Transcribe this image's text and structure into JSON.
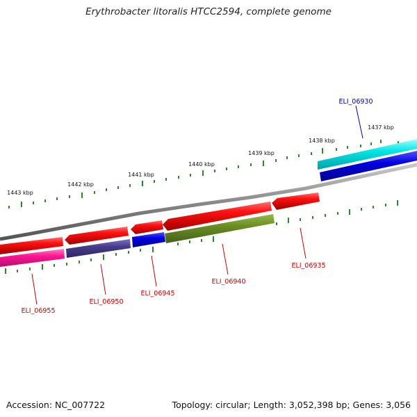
{
  "title": "Erythrobacter litoralis HTCC2594, complete genome",
  "footer": {
    "accession": "Accession: NC_007722",
    "topology": "Topology: circular; Length: 3,052,398 bp; Genes: 3,056"
  },
  "colors": {
    "backbone": "#808080",
    "tick": "#2a8a2a",
    "label_red": "#cc0000",
    "label_blue": "#0000aa"
  },
  "ticks": [
    "1437 kbp",
    "1438 kbp",
    "1439 kbp",
    "1440 kbp",
    "1441 kbp",
    "1442 kbp",
    "1443 kbp"
  ],
  "genes": [
    {
      "name": "ELI_06930",
      "strand": "+",
      "feature_color": "#00e0e0",
      "cds_color": "#0000e0",
      "label_color": "#0000aa"
    },
    {
      "name": "ELI_06935",
      "strand": "-",
      "feature_color": "#ff2020",
      "cds_color": "#6b8e23",
      "label_color": "#cc0000"
    },
    {
      "name": "ELI_06940",
      "strand": "-",
      "feature_color": "#ff1010",
      "cds_color": "#6b8e23",
      "label_color": "#cc0000"
    },
    {
      "name": "ELI_06945",
      "strand": "-",
      "feature_color": "#ff1010",
      "cds_color": "#0000e0",
      "label_color": "#cc0000"
    },
    {
      "name": "ELI_06950",
      "strand": "-",
      "feature_color": "#ff1010",
      "cds_color": "#483d8b",
      "label_color": "#cc0000"
    },
    {
      "name": "ELI_06955",
      "strand": "-",
      "feature_color": "#ff1010",
      "cds_color": "#ff1493",
      "label_color": "#cc0000"
    }
  ]
}
